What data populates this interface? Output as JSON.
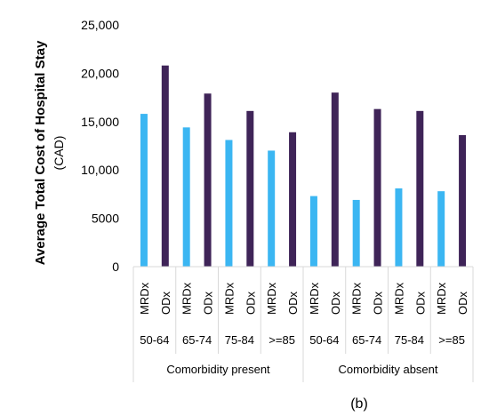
{
  "chart_data": {
    "type": "bar",
    "ylabel_main": "Average Total Cost of Hospital Stay",
    "ylabel_sub": "(CAD)",
    "ylim": [
      0,
      25000
    ],
    "yticks": [
      "0",
      "5000",
      "10,000",
      "15,000",
      "20,000",
      "25,000"
    ],
    "grid": false,
    "legend": "none",
    "colors": {
      "MRDx": "#3bb6f2",
      "ODx": "#3f2458"
    },
    "groups": [
      {
        "super": "Comorbidity present",
        "age": "50-64",
        "bars": [
          {
            "cat": "MRDx",
            "value": 15800
          },
          {
            "cat": "ODx",
            "value": 20800
          }
        ]
      },
      {
        "super": "Comorbidity present",
        "age": "65-74",
        "bars": [
          {
            "cat": "MRDx",
            "value": 14400
          },
          {
            "cat": "ODx",
            "value": 17900
          }
        ]
      },
      {
        "super": "Comorbidity present",
        "age": "75-84",
        "bars": [
          {
            "cat": "MRDx",
            "value": 13100
          },
          {
            "cat": "ODx",
            "value": 16100
          }
        ]
      },
      {
        "super": "Comorbidity present",
        "age": ">=85",
        "bars": [
          {
            "cat": "MRDx",
            "value": 12000
          },
          {
            "cat": "ODx",
            "value": 13900
          }
        ]
      },
      {
        "super": "Comorbidity absent",
        "age": "50-64",
        "bars": [
          {
            "cat": "MRDx",
            "value": 7300
          },
          {
            "cat": "ODx",
            "value": 18000
          }
        ]
      },
      {
        "super": "Comorbidity absent",
        "age": "65-74",
        "bars": [
          {
            "cat": "MRDx",
            "value": 6900
          },
          {
            "cat": "ODx",
            "value": 16300
          }
        ]
      },
      {
        "super": "Comorbidity absent",
        "age": "75-84",
        "bars": [
          {
            "cat": "MRDx",
            "value": 8100
          },
          {
            "cat": "ODx",
            "value": 16100
          }
        ]
      },
      {
        "super": "Comorbidity absent",
        "age": ">=85",
        "bars": [
          {
            "cat": "MRDx",
            "value": 7800
          },
          {
            "cat": "ODx",
            "value": 13600
          }
        ]
      }
    ],
    "super_groups": [
      "Comorbidity present",
      "Comorbidity absent"
    ]
  },
  "caption": "(b)"
}
